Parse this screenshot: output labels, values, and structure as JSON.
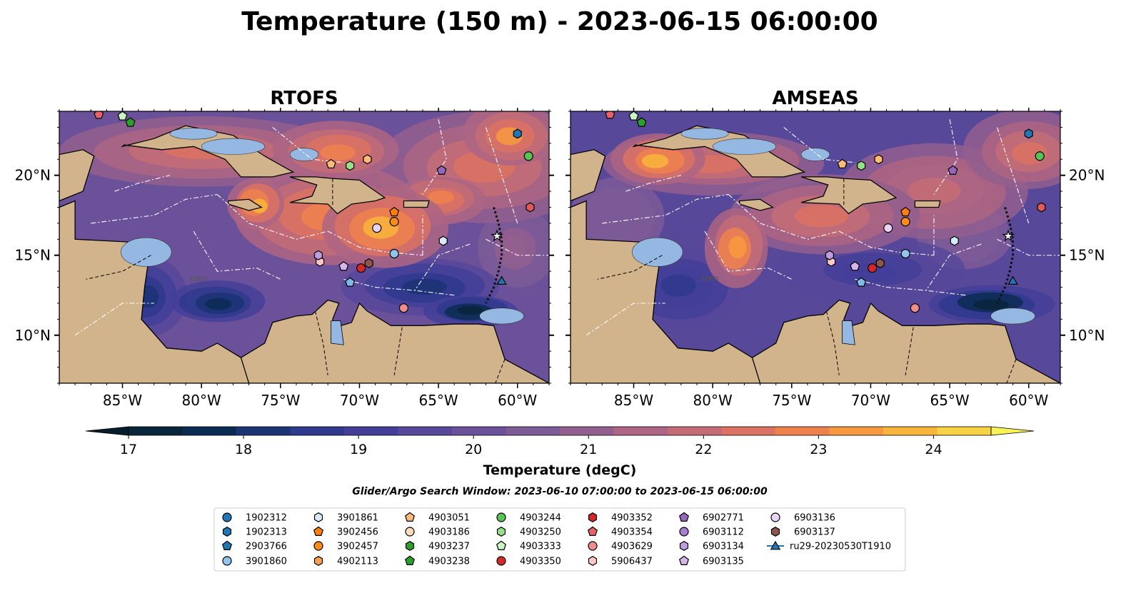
{
  "figure": {
    "title": "Temperature (150 m) - 2023-06-15 06:00:00",
    "search_window": "Glider/Argo Search Window: 2023-06-10 07:00:00 to 2023-06-15 06:00:00"
  },
  "colors": {
    "land": "#d2b48c",
    "shallow": "#95b8e3",
    "deep": "#062235",
    "warm": "#f9e64f"
  },
  "chart_data": [
    {
      "type": "heatmap",
      "title": "RTOFS",
      "variable": "Temperature (degC)",
      "depth_m": 150,
      "extent": {
        "lon": [
          -89,
          -58
        ],
        "lat": [
          7,
          24
        ]
      },
      "x_ticks": [
        "85°W",
        "80°W",
        "75°W",
        "70°W",
        "65°W",
        "60°W"
      ],
      "y_ticks": [
        "20°N",
        "15°N",
        "10°N"
      ],
      "y_tick_side": "left",
      "contour_labels": [
        "1000"
      ]
    },
    {
      "type": "heatmap",
      "title": "AMSEAS",
      "variable": "Temperature (degC)",
      "depth_m": 150,
      "extent": {
        "lon": [
          -89,
          -58
        ],
        "lat": [
          7,
          24
        ]
      },
      "x_ticks": [
        "85°W",
        "80°W",
        "75°W",
        "70°W",
        "65°W",
        "60°W"
      ],
      "y_ticks": [
        "20°N",
        "15°N",
        "10°N"
      ],
      "y_tick_side": "right",
      "contour_labels": [
        "1000"
      ]
    }
  ],
  "colorbar": {
    "label": "Temperature (degC)",
    "range": [
      17,
      24.5
    ],
    "ticks": [
      "17",
      "18",
      "19",
      "20",
      "21",
      "22",
      "23",
      "24"
    ],
    "levels": [
      17.0,
      17.5,
      18.0,
      18.5,
      19.0,
      19.5,
      20.0,
      20.5,
      21.0,
      21.5,
      22.0,
      22.5,
      23.0,
      23.5,
      24.0
    ],
    "colors": [
      "#082539",
      "#0c2b53",
      "#1c3474",
      "#2e3a8c",
      "#433f98",
      "#57489a",
      "#6a5199",
      "#7c5b97",
      "#935f8e",
      "#ad6583",
      "#c46c75",
      "#db7263",
      "#ef814d",
      "#f89940",
      "#f9b43b",
      "#f6d244"
    ],
    "extend_low": "#061d2b",
    "extend_high": "#f7f356"
  },
  "floats": [
    {
      "id": "1902312",
      "marker": "circle",
      "color": "#1f77b4",
      "lon": null,
      "lat": null
    },
    {
      "id": "1902313",
      "marker": "hexagon",
      "color": "#1f77b4",
      "lon": -60.0,
      "lat": 22.6
    },
    {
      "id": "2903766",
      "marker": "pentagon",
      "color": "#1f77b4",
      "lon": null,
      "lat": null
    },
    {
      "id": "3901860",
      "marker": "circle",
      "color": "#8fc5ee",
      "lon": -67.8,
      "lat": 15.1
    },
    {
      "id": "3901861",
      "marker": "hexagon",
      "color": "#d7ebfb",
      "lon": -64.7,
      "lat": 15.9
    },
    {
      "id": "3902456",
      "marker": "pentagon",
      "color": "#ff7f0e",
      "lon": -67.8,
      "lat": 17.7
    },
    {
      "id": "3902457",
      "marker": "circle",
      "color": "#ff8c1a",
      "lon": -67.8,
      "lat": 17.1
    },
    {
      "id": "4902113",
      "marker": "hexagon",
      "color": "#ffa050",
      "lon": null,
      "lat": null
    },
    {
      "id": "4903051",
      "marker": "pentagon",
      "color": "#ffbb78",
      "lon": -71.8,
      "lat": 20.7
    },
    {
      "id": "4903186",
      "marker": "circle",
      "color": "#ffdcb8",
      "lon": null,
      "lat": null
    },
    {
      "id": "4903237",
      "marker": "hexagon",
      "color": "#2ca02c",
      "lon": null,
      "lat": null
    },
    {
      "id": "4903238",
      "marker": "pentagon",
      "color": "#2ca02c",
      "lon": -84.5,
      "lat": 23.3
    },
    {
      "id": "4903244",
      "marker": "circle",
      "color": "#55c455",
      "lon": -59.3,
      "lat": 21.2
    },
    {
      "id": "4903250",
      "marker": "hexagon",
      "color": "#98df8a",
      "lon": -70.6,
      "lat": 20.6
    },
    {
      "id": "4903333",
      "marker": "pentagon",
      "color": "#c8f5c0",
      "lon": -85.0,
      "lat": 23.7
    },
    {
      "id": "4903350",
      "marker": "circle",
      "color": "#d62728",
      "lon": -69.9,
      "lat": 14.2
    },
    {
      "id": "4903352",
      "marker": "hexagon",
      "color": "#d62728",
      "lon": null,
      "lat": null
    },
    {
      "id": "4903354",
      "marker": "pentagon",
      "color": "#e8606a",
      "lon": -86.5,
      "lat": 23.8
    },
    {
      "id": "4903629",
      "marker": "circle",
      "color": "#f08c8c",
      "lon": -67.2,
      "lat": 11.7
    },
    {
      "id": "5906437",
      "marker": "hexagon",
      "color": "#ffc8c8",
      "lon": -72.5,
      "lat": 14.6
    },
    {
      "id": "6902771",
      "marker": "pentagon",
      "color": "#9467bd",
      "lon": -64.8,
      "lat": 20.3
    },
    {
      "id": "6903112",
      "marker": "circle",
      "color": "#a67dd0",
      "lon": null,
      "lat": null
    },
    {
      "id": "6903134",
      "marker": "hexagon",
      "color": "#c09ce0",
      "lon": -72.6,
      "lat": 15.0
    },
    {
      "id": "6903135",
      "marker": "pentagon",
      "color": "#d5b5ec",
      "lon": -71.0,
      "lat": 14.3
    },
    {
      "id": "6903136",
      "marker": "circle",
      "color": "#ead4f6",
      "lon": -68.9,
      "lat": 16.7
    },
    {
      "id": "6903137",
      "marker": "hexagon",
      "color": "#8c564b",
      "lon": -69.4,
      "lat": 14.5
    },
    {
      "id": "ru29-20230530T1910",
      "marker": "triangle",
      "color": "#1f77b4",
      "lon": -61.0,
      "lat": 13.4
    }
  ],
  "extra_markers": [
    {
      "marker": "hexagon",
      "color": "#ffbb78",
      "lon": -69.5,
      "lat": 21.0
    },
    {
      "marker": "hexagon",
      "color": "#e05a5a",
      "lon": -59.2,
      "lat": 18.0
    },
    {
      "marker": "star",
      "color": "#f0f0f8",
      "lon": -61.3,
      "lat": 16.2
    },
    {
      "marker": "pentagon",
      "color": "#7fb9e6",
      "lon": -70.6,
      "lat": 13.3
    }
  ]
}
